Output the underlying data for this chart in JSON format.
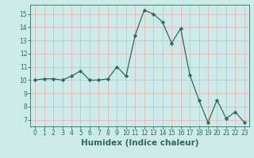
{
  "x": [
    0,
    1,
    2,
    3,
    4,
    5,
    6,
    7,
    8,
    9,
    10,
    11,
    12,
    13,
    14,
    15,
    16,
    17,
    18,
    19,
    20,
    21,
    22,
    23
  ],
  "y": [
    10.0,
    10.1,
    10.1,
    10.0,
    10.3,
    10.7,
    10.0,
    10.0,
    10.1,
    11.0,
    10.3,
    13.4,
    15.3,
    15.0,
    14.4,
    12.8,
    13.9,
    10.4,
    8.5,
    6.8,
    8.5,
    7.1,
    7.6,
    6.8
  ],
  "line_color": "#2e6b5e",
  "marker": "D",
  "marker_size": 2.2,
  "bg_color": "#cceae7",
  "grid_color": "#e8b8b8",
  "xlabel": "Humidex (Indice chaleur)",
  "ylim": [
    6.5,
    15.7
  ],
  "xlim": [
    -0.5,
    23.5
  ],
  "yticks": [
    7,
    8,
    9,
    10,
    11,
    12,
    13,
    14,
    15
  ],
  "xticks": [
    0,
    1,
    2,
    3,
    4,
    5,
    6,
    7,
    8,
    9,
    10,
    11,
    12,
    13,
    14,
    15,
    16,
    17,
    18,
    19,
    20,
    21,
    22,
    23
  ],
  "tick_fontsize": 5.5,
  "xlabel_fontsize": 7.5,
  "line_width": 0.9
}
